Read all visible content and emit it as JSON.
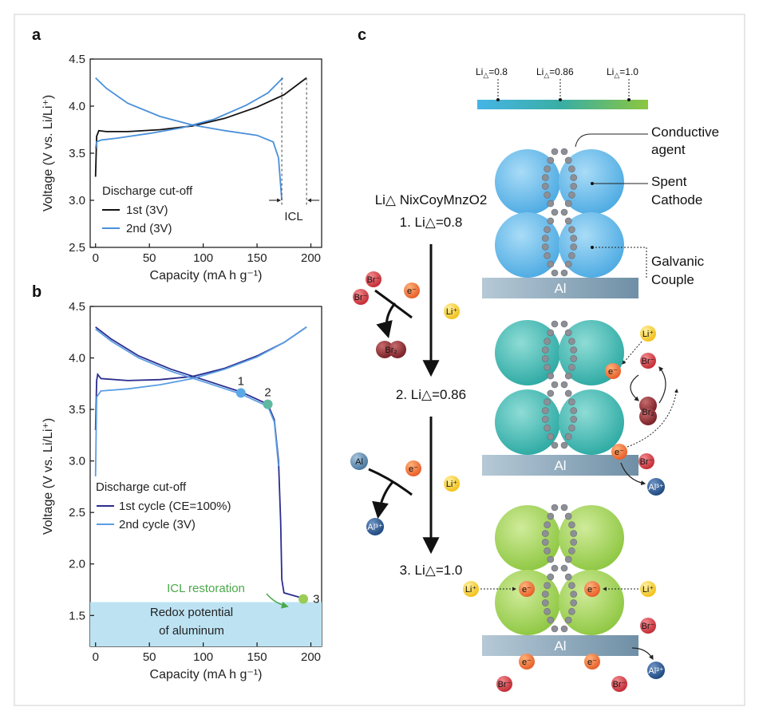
{
  "panels": {
    "a": "a",
    "b": "b",
    "c": "c"
  },
  "chart_data": [
    {
      "id": "a",
      "type": "line",
      "xlabel": "Capacity (mA h g⁻¹)",
      "ylabel": "Voltage (V vs. Li/Li⁺)",
      "xlim": [
        -5,
        210
      ],
      "ylim": [
        2.5,
        4.5
      ],
      "xticks": [
        0,
        50,
        100,
        150,
        200
      ],
      "yticks": [
        2.5,
        3.0,
        3.5,
        4.0,
        4.5
      ],
      "ytick_labels": [
        "2.5",
        "3.0",
        "3.5",
        "4.0",
        "4.5"
      ],
      "legend_title": "Discharge cut-off",
      "series": [
        {
          "name": "1st (3V)",
          "color": "#111111",
          "charge": [
            [
              0,
              3.25
            ],
            [
              1,
              3.68
            ],
            [
              3,
              3.74
            ],
            [
              10,
              3.73
            ],
            [
              30,
              3.73
            ],
            [
              60,
              3.75
            ],
            [
              90,
              3.79
            ],
            [
              120,
              3.87
            ],
            [
              150,
              3.99
            ],
            [
              175,
              4.12
            ],
            [
              196,
              4.3
            ]
          ],
          "discharge": []
        },
        {
          "name": "2nd (3V)",
          "color": "#4a90d9",
          "charge": [
            [
              0,
              3.55
            ],
            [
              1,
              3.62
            ],
            [
              5,
              3.64
            ],
            [
              20,
              3.66
            ],
            [
              50,
              3.71
            ],
            [
              80,
              3.77
            ],
            [
              110,
              3.86
            ],
            [
              140,
              4.01
            ],
            [
              160,
              4.14
            ],
            [
              174,
              4.3
            ]
          ],
          "discharge": [
            [
              0,
              4.3
            ],
            [
              10,
              4.19
            ],
            [
              30,
              4.03
            ],
            [
              60,
              3.89
            ],
            [
              90,
              3.8
            ],
            [
              120,
              3.74
            ],
            [
              150,
              3.69
            ],
            [
              165,
              3.62
            ],
            [
              170,
              3.45
            ],
            [
              172,
              3.15
            ],
            [
              173,
              3.0
            ]
          ]
        }
      ],
      "annotations": {
        "icl": "ICL"
      }
    },
    {
      "id": "b",
      "type": "line",
      "xlabel": "Capacity (mA h g⁻¹)",
      "ylabel": "Voltage (V vs. Li/Li⁺)",
      "xlim": [
        -5,
        210
      ],
      "ylim": [
        1.2,
        4.5
      ],
      "xticks": [
        0,
        50,
        100,
        150,
        200
      ],
      "yticks": [
        1.5,
        2.0,
        2.5,
        3.0,
        3.5,
        4.0,
        4.5
      ],
      "ytick_labels": [
        "1.5",
        "2.0",
        "2.5",
        "3.0",
        "3.5",
        "4.0",
        "4.5"
      ],
      "legend_title": "Discharge cut-off",
      "series": [
        {
          "name": "1st cycle (CE=100%)",
          "color": "#2b2d8f",
          "charge": [
            [
              0,
              3.3
            ],
            [
              1,
              3.78
            ],
            [
              2,
              3.84
            ],
            [
              5,
              3.8
            ],
            [
              30,
              3.78
            ],
            [
              60,
              3.79
            ],
            [
              90,
              3.82
            ],
            [
              120,
              3.9
            ],
            [
              150,
              4.02
            ],
            [
              175,
              4.15
            ],
            [
              196,
              4.3
            ]
          ],
          "discharge": [
            [
              0,
              4.3
            ],
            [
              15,
              4.18
            ],
            [
              40,
              4.02
            ],
            [
              70,
              3.89
            ],
            [
              100,
              3.79
            ],
            [
              135,
              3.67
            ],
            [
              160,
              3.55
            ],
            [
              166,
              3.4
            ],
            [
              170,
              3.0
            ],
            [
              172,
              2.4
            ],
            [
              173,
              1.85
            ],
            [
              175,
              1.72
            ],
            [
              185,
              1.69
            ],
            [
              195,
              1.66
            ]
          ]
        },
        {
          "name": "2nd cycle (3V)",
          "color": "#5b9ee3",
          "charge": [
            [
              0,
              2.85
            ],
            [
              1,
              3.62
            ],
            [
              5,
              3.68
            ],
            [
              30,
              3.7
            ],
            [
              60,
              3.74
            ],
            [
              90,
              3.8
            ],
            [
              120,
              3.89
            ],
            [
              150,
              4.01
            ],
            [
              175,
              4.15
            ],
            [
              196,
              4.3
            ]
          ],
          "discharge": [
            [
              0,
              4.28
            ],
            [
              15,
              4.16
            ],
            [
              40,
              4.0
            ],
            [
              70,
              3.87
            ],
            [
              100,
              3.77
            ],
            [
              135,
              3.65
            ],
            [
              160,
              3.53
            ],
            [
              166,
              3.38
            ],
            [
              170,
              2.95
            ]
          ]
        }
      ],
      "markers": [
        {
          "label": "1",
          "x": 135,
          "y": 3.66,
          "color": "#5aa9e6"
        },
        {
          "label": "2",
          "x": 160,
          "y": 3.55,
          "color": "#5fb8a0"
        },
        {
          "label": "3",
          "x": 193,
          "y": 1.66,
          "color": "#9acd55"
        }
      ],
      "region": {
        "ymax": 1.63,
        "color": "#bde3f3",
        "label_lines": [
          "Redox potential",
          "of aluminum"
        ]
      },
      "annotations": {
        "icl_restoration": "ICL restoration"
      }
    }
  ],
  "diagram": {
    "gradient": {
      "labels": [
        {
          "prefix": "Li",
          "value": "=0.8"
        },
        {
          "prefix": "Li",
          "value": "=0.86"
        },
        {
          "prefix": "Li",
          "value": "=1.0"
        }
      ],
      "colors": [
        "#45b4e6",
        "#3aaea2",
        "#8cc63f"
      ]
    },
    "formula": "Li△ NixCoyMnzO2",
    "steps": [
      "1. Li△=0.8",
      "2. Li△=0.86",
      "3. Li△=1.0"
    ],
    "callouts": {
      "conductive_agent": [
        "Conductive",
        "agent"
      ],
      "spent_cathode": [
        "Spent",
        "Cathode"
      ],
      "galvanic_couple": [
        "Galvanic",
        "Couple"
      ]
    },
    "substrate_label": "Al",
    "ions": {
      "br": "Br⁻",
      "br2": "Br₂",
      "e": "e⁻",
      "li": "Li⁺",
      "al": "Al",
      "al3": "Al³⁺"
    },
    "particle_colors": [
      "#5db8ec",
      "#35b3ad",
      "#9ccc4e"
    ]
  }
}
